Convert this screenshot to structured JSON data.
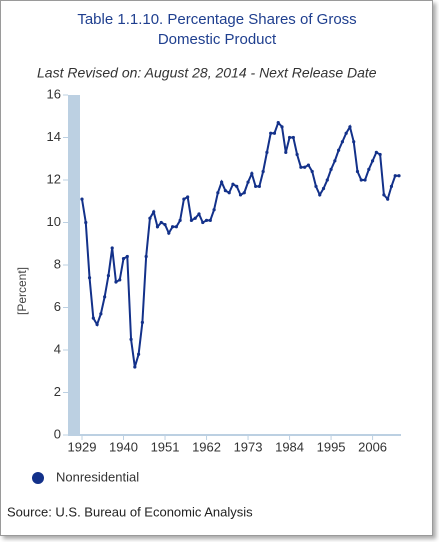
{
  "chart_data": {
    "type": "line",
    "title": "Table 1.1.10. Percentage Shares of Gross Domestic Product",
    "title_lines": [
      "Table 1.1.10. Percentage Shares of Gross",
      "Domestic Product"
    ],
    "subtitle": "Last Revised on: August 28, 2014 - Next Release Date",
    "y_label": "[Percent]",
    "source": "Source: U.S. Bureau of Economic Analysis",
    "x": [
      1929,
      1930,
      1931,
      1932,
      1933,
      1934,
      1935,
      1936,
      1937,
      1938,
      1939,
      1940,
      1941,
      1942,
      1943,
      1944,
      1945,
      1946,
      1947,
      1948,
      1949,
      1950,
      1951,
      1952,
      1953,
      1954,
      1955,
      1956,
      1957,
      1958,
      1959,
      1960,
      1961,
      1962,
      1963,
      1964,
      1965,
      1966,
      1967,
      1968,
      1969,
      1970,
      1971,
      1972,
      1973,
      1974,
      1975,
      1976,
      1977,
      1978,
      1979,
      1980,
      1981,
      1982,
      1983,
      1984,
      1985,
      1986,
      1987,
      1988,
      1989,
      1990,
      1991,
      1992,
      1993,
      1994,
      1995,
      1996,
      1997,
      1998,
      1999,
      2000,
      2001,
      2002,
      2003,
      2004,
      2005,
      2006,
      2007,
      2008,
      2009,
      2010,
      2011,
      2012,
      2013
    ],
    "series": [
      {
        "name": "Nonresidential",
        "color": "#13318a",
        "values": [
          11.1,
          10.0,
          7.4,
          5.5,
          5.2,
          5.7,
          6.5,
          7.5,
          8.8,
          7.2,
          7.3,
          8.3,
          8.4,
          4.5,
          3.2,
          3.8,
          5.3,
          8.4,
          10.2,
          10.5,
          9.8,
          10.0,
          9.9,
          9.5,
          9.8,
          9.8,
          10.1,
          11.1,
          11.2,
          10.1,
          10.2,
          10.4,
          10.0,
          10.1,
          10.1,
          10.6,
          11.4,
          11.9,
          11.5,
          11.4,
          11.8,
          11.7,
          11.3,
          11.4,
          11.9,
          12.3,
          11.7,
          11.7,
          12.4,
          13.3,
          14.2,
          14.2,
          14.7,
          14.5,
          13.3,
          14.0,
          14.0,
          13.2,
          12.6,
          12.6,
          12.7,
          12.4,
          11.7,
          11.3,
          11.6,
          12.0,
          12.5,
          12.9,
          13.4,
          13.8,
          14.2,
          14.5,
          13.8,
          12.4,
          12.0,
          12.0,
          12.5,
          12.9,
          13.3,
          13.2,
          11.3,
          11.1,
          11.7,
          12.2,
          12.2
        ]
      }
    ],
    "xlim": [
      1929,
      2013
    ],
    "xticks": [
      1929,
      1940,
      1951,
      1962,
      1973,
      1984,
      1995,
      2006
    ],
    "ylim": [
      0,
      16
    ],
    "yticks": [
      0,
      2,
      4,
      6,
      8,
      10,
      12,
      14,
      16
    ]
  }
}
